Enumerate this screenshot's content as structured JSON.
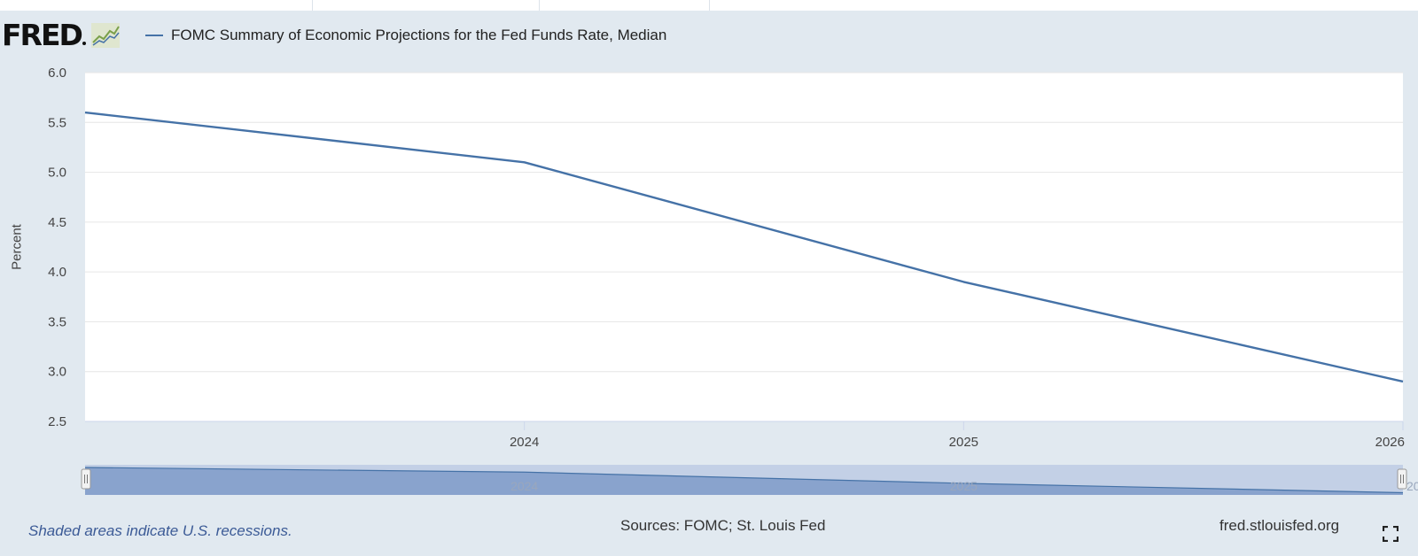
{
  "header": {
    "logo": "FRED",
    "logo_icon": "line-chart-icon",
    "legend_label": "FOMC Summary of Economic Projections for the Fed Funds Rate, Median"
  },
  "colors": {
    "series": "#4572a7",
    "frame_bg": "#e1e9f0",
    "plot_bg": "#ffffff",
    "gridline": "#e6e6e6",
    "navigator_fill": "#7f9bc8",
    "navigator_bg": "#c3d0e6",
    "footer_note": "#3b5a96"
  },
  "chart_data": {
    "type": "line",
    "title": "",
    "xlabel": "",
    "ylabel": "Percent",
    "xlim": [
      2023,
      2026
    ],
    "ylim": [
      2.5,
      6.0
    ],
    "yticks": [
      "2.5",
      "3.0",
      "3.5",
      "4.0",
      "4.5",
      "5.0",
      "5.5",
      "6.0"
    ],
    "xticks": [
      "2024",
      "2025",
      "2026"
    ],
    "grid": true,
    "legend": "top-left",
    "series": [
      {
        "name": "FOMC Summary of Economic Projections for the Fed Funds Rate, Median",
        "x": [
          2023,
          2024,
          2025,
          2026
        ],
        "y": [
          5.6,
          5.1,
          3.9,
          2.9
        ]
      }
    ],
    "navigator_labels": [
      "2024",
      "2025",
      "20"
    ]
  },
  "footer": {
    "note": "Shaded areas indicate U.S. recessions.",
    "sources": "Sources: FOMC; St. Louis Fed",
    "site": "fred.stlouisfed.org",
    "fullscreen_icon": "fullscreen-icon"
  }
}
